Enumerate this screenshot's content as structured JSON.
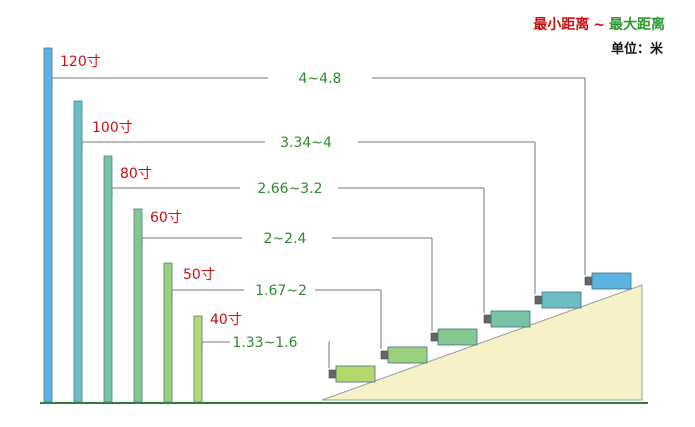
{
  "legend": {
    "min_label": "最小距离",
    "separator": "~",
    "max_label": "最大距离"
  },
  "unit_label": "单位：米",
  "colors": {
    "min_text": "#cc1010",
    "max_text": "#2a9a2a",
    "label_text": "#cc1010",
    "range_text": "#2e8b2e",
    "ramp_fill": "#f6f1c6",
    "ground": "#2e7d32"
  },
  "screens": [
    {
      "size_label": "120寸",
      "range_label": "4~4.8",
      "color": "#5bb4e0"
    },
    {
      "size_label": "100寸",
      "range_label": "3.34~4",
      "color": "#6cbec4"
    },
    {
      "size_label": "80寸",
      "range_label": "2.66~3.2",
      "color": "#78c2a6"
    },
    {
      "size_label": "60寸",
      "range_label": "2~2.4",
      "color": "#86c990"
    },
    {
      "size_label": "50寸",
      "range_label": "1.67~2",
      "color": "#9ccf7e"
    },
    {
      "size_label": "40寸",
      "range_label": "1.33~1.6",
      "color": "#b5d86e"
    }
  ]
}
